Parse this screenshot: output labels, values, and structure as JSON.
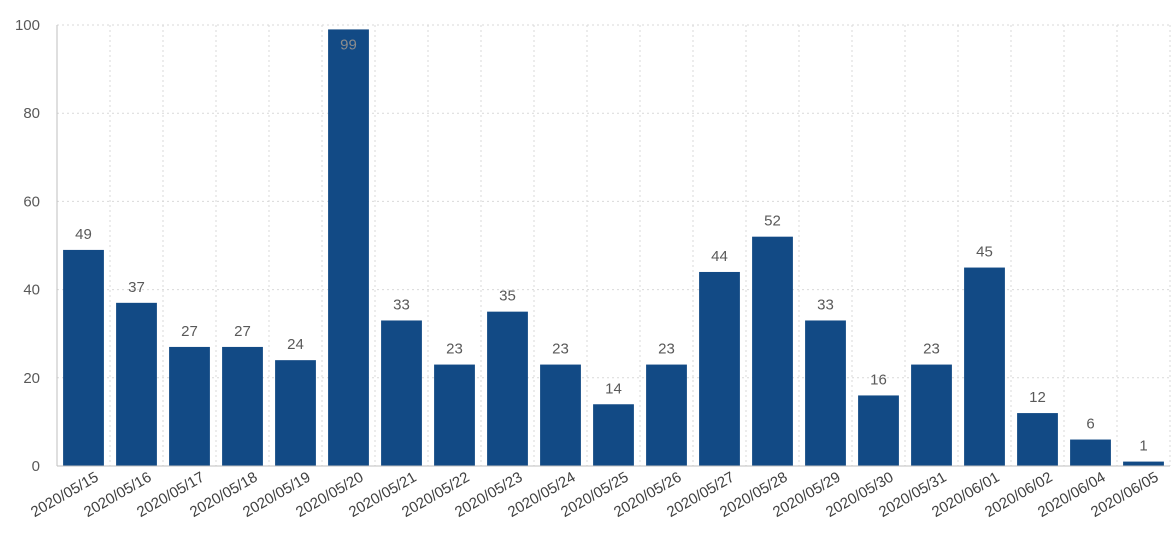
{
  "chart_data": {
    "type": "bar",
    "categories": [
      "2020/05/15",
      "2020/05/16",
      "2020/05/17",
      "2020/05/18",
      "2020/05/19",
      "2020/05/20",
      "2020/05/21",
      "2020/05/22",
      "2020/05/23",
      "2020/05/24",
      "2020/05/25",
      "2020/05/26",
      "2020/05/27",
      "2020/05/28",
      "2020/05/29",
      "2020/05/30",
      "2020/05/31",
      "2020/06/01",
      "2020/06/02",
      "2020/06/04",
      "2020/06/05"
    ],
    "values": [
      49,
      37,
      27,
      27,
      24,
      99,
      33,
      23,
      35,
      23,
      14,
      23,
      44,
      52,
      33,
      16,
      23,
      45,
      12,
      6,
      1
    ],
    "data_labels": [
      "49",
      "37",
      "27",
      "27",
      "24",
      "99",
      "33",
      "23",
      "35",
      "23",
      "14",
      "23",
      "44",
      "52",
      "33",
      "16",
      "23",
      "45",
      "12",
      "6",
      "1"
    ],
    "title": "",
    "xlabel": "",
    "ylabel": "",
    "ylim": [
      0,
      100
    ],
    "yticks": [
      "0",
      "20",
      "40",
      "60",
      "80",
      "100"
    ],
    "grid": true,
    "bar_color": "#124a85"
  }
}
